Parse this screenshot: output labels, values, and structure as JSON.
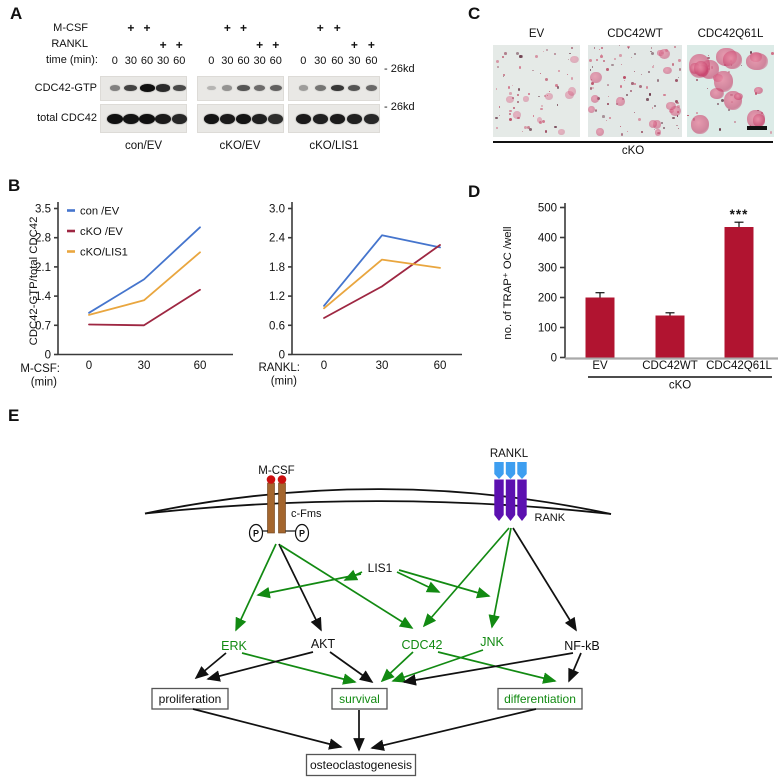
{
  "panel_labels": {
    "a": "A",
    "b": "B",
    "c": "C",
    "d": "D",
    "e": "E"
  },
  "panel_a": {
    "rows": {
      "mcsf": "M-CSF",
      "rankl": "RANKL",
      "time": "time (min):"
    },
    "plus": "+",
    "times": [
      "0",
      "30",
      "60",
      "30",
      "60"
    ],
    "mcsf_lanes": [
      1,
      2
    ],
    "rankl_lanes": [
      3,
      4
    ],
    "blot_row_labels": {
      "gtp": "CDC42-GTP",
      "total": "total CDC42"
    },
    "size_markers": {
      "top": "- 26kd",
      "bottom": "- 26kd"
    },
    "groups": [
      {
        "name": "con/EV",
        "gtp": [
          0.38,
          0.72,
          1.0,
          0.85,
          0.68
        ],
        "total": [
          1,
          0.98,
          1,
          0.95,
          0.88
        ]
      },
      {
        "name": "cKO/EV",
        "gtp": [
          0.1,
          0.28,
          0.62,
          0.5,
          0.55
        ],
        "total": [
          0.98,
          0.95,
          0.98,
          0.92,
          0.85
        ]
      },
      {
        "name": "cKO/LIS1",
        "gtp": [
          0.22,
          0.45,
          0.78,
          0.62,
          0.52
        ],
        "total": [
          0.95,
          0.92,
          0.95,
          0.92,
          0.88
        ]
      }
    ]
  },
  "chart_data": [
    {
      "type": "line",
      "name": "mcsf_timecourse",
      "ylabel": "CDC42-GTP/total CDC42",
      "xlabel": "M-CSF:",
      "xlabel2": "(min)",
      "x": [
        0,
        30,
        60
      ],
      "xtick_labels": [
        "0",
        "30",
        "60"
      ],
      "ylim": [
        0,
        3.5
      ],
      "yticks": [
        0,
        0.7,
        1.4,
        2.1,
        2.8,
        3.5
      ],
      "ytick_labels": [
        "0",
        "0.7",
        "1.4",
        "2.1",
        "2.8",
        "3.5"
      ],
      "legend_position": "top-left",
      "grid": false,
      "series": [
        {
          "name": "con /EV",
          "color": "#4575cd",
          "values": [
            1.0,
            1.8,
            3.05
          ]
        },
        {
          "name": "cKO /EV",
          "color": "#9e2742",
          "values": [
            0.72,
            0.7,
            1.55
          ]
        },
        {
          "name": "cKO/LIS1",
          "color": "#e9a63f",
          "values": [
            0.95,
            1.3,
            2.45
          ]
        }
      ]
    },
    {
      "type": "line",
      "name": "rankl_timecourse",
      "ylabel": "",
      "xlabel": "RANKL:",
      "xlabel2": "(min)",
      "x": [
        0,
        30,
        60
      ],
      "xtick_labels": [
        "0",
        "30",
        "60"
      ],
      "ylim": [
        0,
        3.0
      ],
      "yticks": [
        0,
        0.6,
        1.2,
        1.8,
        2.4,
        3.0
      ],
      "ytick_labels": [
        "0",
        "0.6",
        "1.2",
        "1.8",
        "2.4",
        "3.0"
      ],
      "legend_position": "none",
      "grid": false,
      "series": [
        {
          "name": "con /EV",
          "color": "#4575cd",
          "values": [
            1.0,
            2.45,
            2.2
          ]
        },
        {
          "name": "cKO /EV",
          "color": "#9e2742",
          "values": [
            0.75,
            1.4,
            2.25
          ]
        },
        {
          "name": "cKO/LIS1",
          "color": "#e9a63f",
          "values": [
            0.95,
            1.95,
            1.78
          ]
        }
      ]
    },
    {
      "type": "bar",
      "name": "trap_oc_counts",
      "ylabel": "no. of TRAP⁺ OC /well",
      "categories": [
        "EV",
        "CDC42WT",
        "CDC42Q61L"
      ],
      "values": [
        200,
        140,
        435
      ],
      "errors": [
        16,
        9,
        16
      ],
      "ylim": [
        0,
        500
      ],
      "yticks": [
        0,
        100,
        200,
        300,
        400,
        500
      ],
      "ytick_labels": [
        "0",
        "100",
        "200",
        "300",
        "400",
        "500"
      ],
      "bar_color": "#b11430",
      "significance": {
        "index": 2,
        "label": "***"
      },
      "group_label": "cKO"
    }
  ],
  "panel_c": {
    "group_label": "cKO",
    "images": [
      {
        "label": "EV",
        "bg": "#e5eae7",
        "dots": 60,
        "blobs": 9,
        "blob_min": 4,
        "blob_max": 9,
        "blob_alpha": 0.35
      },
      {
        "label": "CDC42WT",
        "bg": "#e2e8e6",
        "dots": 85,
        "blobs": 14,
        "blob_min": 5,
        "blob_max": 12,
        "blob_alpha": 0.5
      },
      {
        "label": "CDC42Q61L",
        "bg": "#dcebe7",
        "dots": 32,
        "blobs": 18,
        "blob_min": 8,
        "blob_max": 22,
        "blob_alpha": 0.6
      }
    ]
  },
  "panel_e": {
    "mcsf": "M-CSF",
    "cfms": "c-Fms",
    "p_left": "P",
    "p_right": "P",
    "rankl": "RANKL",
    "rank": "RANK",
    "lis1": "LIS1",
    "erk": "ERK",
    "akt": "AKT",
    "cdc42": "CDC42",
    "jnk": "JNK",
    "nfkb": "NF-kB",
    "boxes": {
      "proliferation": "proliferation",
      "survival": "survival",
      "differentiation": "differentiation",
      "osteoclastogenesis": "osteoclastogenesis"
    }
  },
  "colors": {
    "green": "#128a12",
    "blue_line": "#4575cd",
    "red_line": "#9e2742",
    "orange_line": "#e9a63f",
    "bar": "#b11430",
    "rankl_blue": "#3d9ef0",
    "rank_purple": "#5c10b0",
    "receptor_brown": "#a4662e",
    "ligand_red": "#cc1010"
  }
}
